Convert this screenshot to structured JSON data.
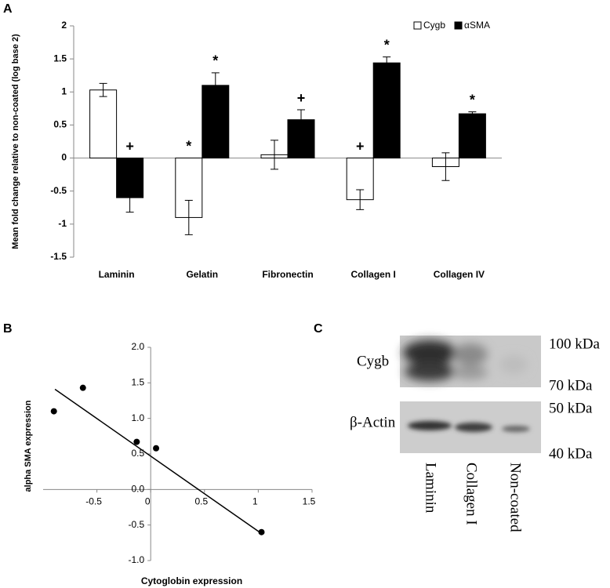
{
  "chart_data": [
    {
      "type": "bar",
      "label": "A",
      "y_label": "Mean fold change relative to non-coated (log base 2)",
      "categories": [
        "Laminin",
        "Gelatin",
        "Fibronectin",
        "Collagen I",
        "Collagen IV"
      ],
      "series": [
        {
          "name": "Cygb",
          "color": "#ffffff",
          "values": [
            1.03,
            -0.9,
            0.05,
            -0.63,
            -0.13
          ],
          "errors": [
            0.1,
            0.26,
            0.22,
            0.15,
            0.21
          ],
          "annotations": [
            null,
            "*",
            null,
            "+",
            null
          ]
        },
        {
          "name": "αSMA",
          "color": "#000000",
          "values": [
            -0.6,
            1.1,
            0.58,
            1.44,
            0.67
          ],
          "errors": [
            0.22,
            0.19,
            0.15,
            0.09,
            0.03
          ],
          "annotations": [
            "+",
            "*",
            "+",
            "*",
            "*"
          ]
        }
      ],
      "ylim": [
        -1.5,
        2
      ],
      "yticks": [
        -1.5,
        -1,
        -0.5,
        0,
        0.5,
        1,
        1.5,
        2
      ],
      "legend": "top-right"
    },
    {
      "type": "scatter",
      "label": "B",
      "x_label": "Cytoglobin expression",
      "y_label": "alpha  SMA  expression",
      "x": [
        -0.9,
        -0.63,
        -0.13,
        0.05,
        1.03
      ],
      "y": [
        1.1,
        1.43,
        0.67,
        0.58,
        -0.6
      ],
      "color": "#000000",
      "trendline": {
        "x": [
          -0.89,
          1.03
        ],
        "y": [
          1.41,
          -0.62
        ]
      },
      "xlim": [
        -1,
        1.5
      ],
      "xticks": [
        -0.5,
        0,
        0.5,
        1,
        1.5
      ],
      "ylim": [
        -1,
        2
      ],
      "yticks": [
        {
          "value": -1,
          "label": "-1.0"
        },
        -0.5,
        {
          "value": 0,
          "label": "0.0"
        },
        0.5,
        {
          "value": 1,
          "label": "1.0"
        },
        1.5,
        {
          "value": 2,
          "label": "2.0"
        }
      ]
    }
  ],
  "blot": {
    "label": "C",
    "rows": [
      "Cygb",
      "β-Actin"
    ],
    "markers": [
      "100 kDa",
      "70 kDa",
      "50 kDa",
      "40 kDa"
    ],
    "lanes": [
      "Laminin",
      "Collagen I",
      "Non-coated"
    ]
  }
}
